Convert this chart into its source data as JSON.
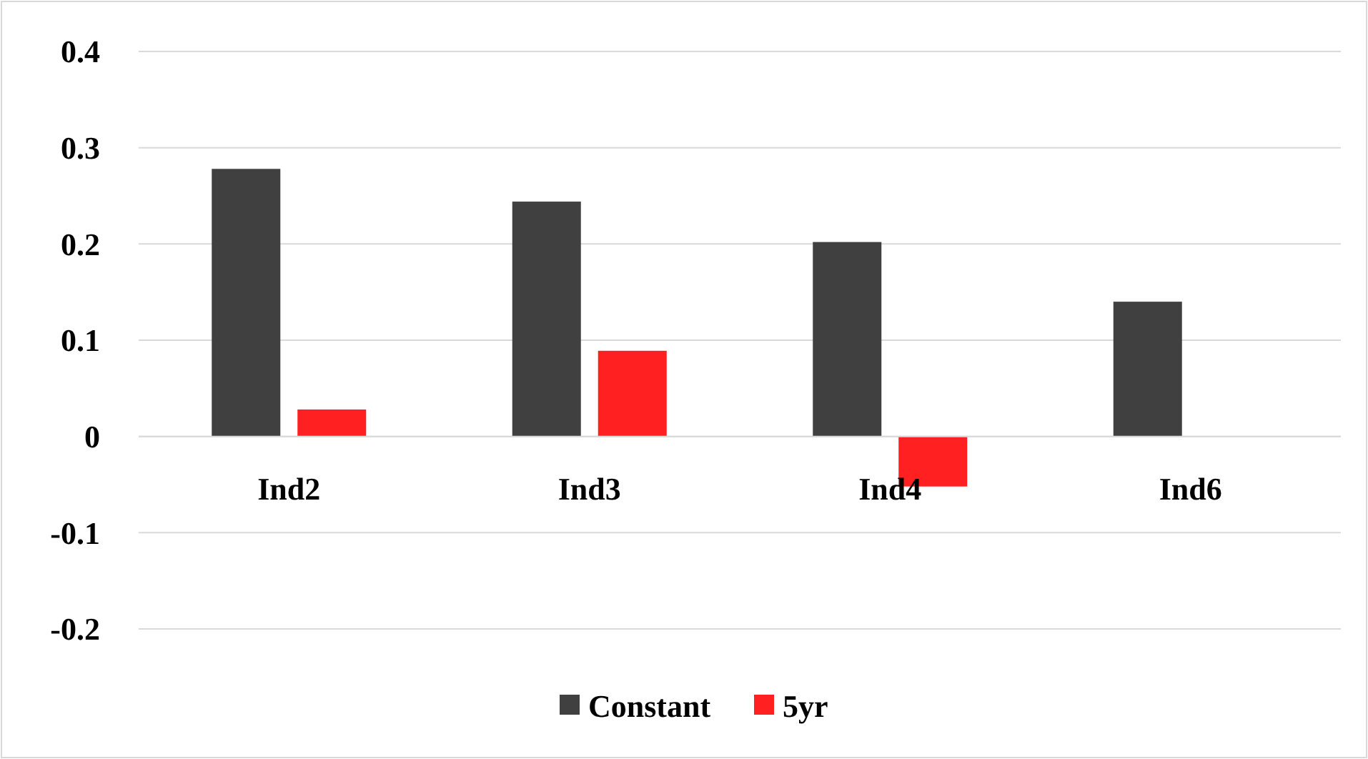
{
  "chart_data": {
    "type": "bar",
    "categories": [
      "Ind2",
      "Ind3",
      "Ind4",
      "Ind6"
    ],
    "series": [
      {
        "name": "Constant",
        "color": "#404040",
        "values": [
          0.278,
          0.244,
          0.202,
          0.14
        ]
      },
      {
        "name": "5yr",
        "color": "#ff2121",
        "values": [
          0.028,
          0.089,
          -0.052,
          null
        ]
      }
    ],
    "ylim": [
      -0.2,
      0.4
    ],
    "yticks": [
      -0.2,
      -0.1,
      0,
      0.1,
      0.2,
      0.3,
      0.4
    ],
    "grid": "y",
    "legend": "bottom"
  }
}
